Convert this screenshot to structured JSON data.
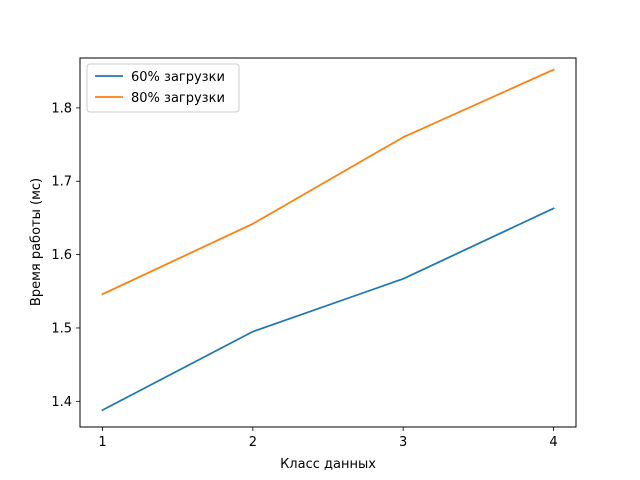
{
  "chart_data": {
    "type": "line",
    "xlabel": "Класс данных",
    "ylabel": "Время работы (мс)",
    "x": [
      1,
      2,
      3,
      4
    ],
    "x_ticks": [
      "1",
      "2",
      "3",
      "4"
    ],
    "y_ticks": [
      "1.4",
      "1.5",
      "1.6",
      "1.7",
      "1.8"
    ],
    "xlim": [
      0.85,
      4.15
    ],
    "ylim": [
      1.365,
      1.868
    ],
    "grid": false,
    "legend_position": "upper-left",
    "series": [
      {
        "name": "60% загрузки",
        "color": "#1f77b4",
        "values": [
          1.388,
          1.495,
          1.567,
          1.663
        ]
      },
      {
        "name": "80% загрузки",
        "color": "#ff7f0e",
        "values": [
          1.546,
          1.642,
          1.76,
          1.852
        ]
      }
    ]
  }
}
